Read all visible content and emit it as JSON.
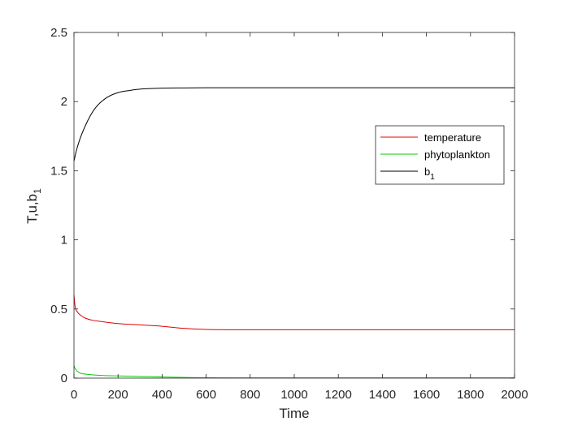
{
  "chart_data": {
    "type": "line",
    "xlabel": "Time",
    "ylabel_parts": [
      "T,u,b",
      "1"
    ],
    "xlim": [
      0,
      2000
    ],
    "ylim": [
      0,
      2.5
    ],
    "x_ticks": [
      0,
      200,
      400,
      600,
      800,
      1000,
      1200,
      1400,
      1600,
      1800,
      2000
    ],
    "y_ticks": [
      0,
      0.5,
      1,
      1.5,
      2,
      2.5
    ],
    "x_tick_labels": [
      "0",
      "200",
      "400",
      "600",
      "800",
      "1000",
      "1200",
      "1400",
      "1600",
      "1800",
      "2000"
    ],
    "y_tick_labels": [
      "0",
      "0.5",
      "1",
      "1.5",
      "2",
      "2.5"
    ],
    "grid": false,
    "legend_position": "right",
    "series": [
      {
        "name": "temperature",
        "color": "#e00000",
        "x": [
          0,
          5,
          15,
          30,
          50,
          80,
          120,
          200,
          300,
          400,
          500,
          600,
          800,
          1000,
          1500,
          2000
        ],
        "y": [
          0.6,
          0.52,
          0.48,
          0.455,
          0.435,
          0.42,
          0.41,
          0.395,
          0.385,
          0.375,
          0.36,
          0.352,
          0.35,
          0.35,
          0.35,
          0.35
        ]
      },
      {
        "name": "phytoplankton",
        "color": "#00cc00",
        "x": [
          0,
          5,
          15,
          30,
          60,
          100,
          200,
          300,
          400,
          500,
          600,
          800,
          1000,
          1500,
          2000
        ],
        "y": [
          0.09,
          0.07,
          0.05,
          0.035,
          0.028,
          0.022,
          0.016,
          0.012,
          0.008,
          0.005,
          0.003,
          0.002,
          0.002,
          0.002,
          0.002
        ]
      },
      {
        "name_parts": [
          "b",
          "1"
        ],
        "color": "#000000",
        "x": [
          0,
          10,
          25,
          50,
          75,
          100,
          150,
          200,
          250,
          300,
          400,
          500,
          600,
          800,
          1000,
          1500,
          2000
        ],
        "y": [
          1.57,
          1.64,
          1.72,
          1.82,
          1.9,
          1.96,
          2.03,
          2.065,
          2.08,
          2.09,
          2.097,
          2.099,
          2.1,
          2.1,
          2.1,
          2.1,
          2.1
        ]
      }
    ]
  }
}
